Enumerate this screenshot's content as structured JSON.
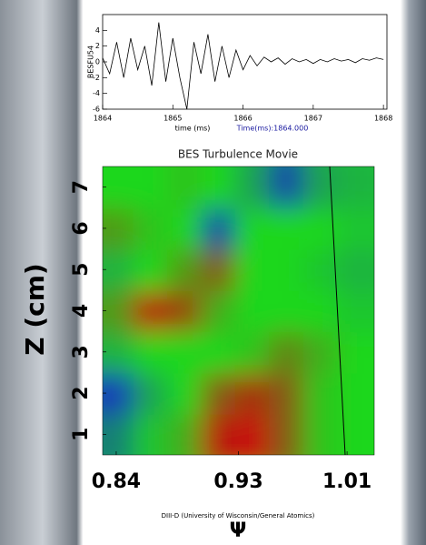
{
  "chart_data": [
    {
      "type": "line",
      "y_label": "BESFU54",
      "x_label": "time (ms)",
      "annotation": "Time(ms):1864.000",
      "x": [
        1864.0,
        1864.1,
        1864.2,
        1864.3,
        1864.4,
        1864.5,
        1864.6,
        1864.7,
        1864.8,
        1864.9,
        1865.0,
        1865.1,
        1865.2,
        1865.3,
        1865.4,
        1865.5,
        1865.6,
        1865.7,
        1865.8,
        1865.9,
        1866.0,
        1866.1,
        1866.2,
        1866.3,
        1866.4,
        1866.5,
        1866.6,
        1866.7,
        1866.8,
        1866.9,
        1867.0,
        1867.1,
        1867.2,
        1867.3,
        1867.4,
        1867.5,
        1867.6,
        1867.7,
        1867.8,
        1867.9,
        1868.0
      ],
      "series": [
        {
          "name": "BESFU54",
          "color": "#000000",
          "values": [
            0.5,
            -1.5,
            2.5,
            -2,
            3,
            -1,
            2,
            -3,
            5,
            -2.5,
            3,
            -2,
            -6,
            2.5,
            -1.5,
            3.5,
            -2.5,
            2,
            -2,
            1.5,
            -1,
            0.8,
            -0.5,
            0.6,
            0,
            0.5,
            -0.3,
            0.4,
            0,
            0.3,
            -0.2,
            0.3,
            0,
            0.4,
            0.1,
            0.3,
            -0.1,
            0.4,
            0.2,
            0.5,
            0.3
          ]
        }
      ],
      "xlim": [
        1864,
        1868.05
      ],
      "xticks": [
        1864,
        1865,
        1866,
        1867,
        1868
      ],
      "ylim": [
        -6,
        6
      ],
      "yticks": [
        -6,
        -4,
        -2,
        0,
        2,
        4
      ]
    },
    {
      "type": "heatmap",
      "title": "BES Turbulence Movie",
      "y_label": "Z (cm)",
      "x_label": "Ψ",
      "source": "DIII-D (University of Wisconsin/General Atomics)",
      "x": [
        0.84,
        0.865,
        0.89,
        0.915,
        0.94,
        0.965,
        0.99,
        1.015
      ],
      "y": [
        1,
        2,
        3,
        4,
        5,
        6,
        7
      ],
      "z": [
        [
          -0.5,
          -0.1,
          0.2,
          0.9,
          1,
          0.6,
          0.1,
          0
        ],
        [
          -0.9,
          -0.3,
          0,
          0.6,
          0.8,
          0.6,
          0.1,
          0
        ],
        [
          -0.2,
          0,
          0,
          0,
          0.1,
          0.4,
          0.2,
          0
        ],
        [
          0.3,
          0.9,
          0.7,
          0.2,
          0,
          0,
          0,
          -0.1
        ],
        [
          -0.2,
          0,
          0.3,
          0.6,
          0,
          0,
          -0.1,
          -0.2
        ],
        [
          0.3,
          0.1,
          0,
          -0.8,
          0,
          0,
          0,
          -0.1
        ],
        [
          0,
          0,
          0.1,
          0,
          -0.3,
          -0.8,
          -0.3,
          -0.2
        ]
      ],
      "xlim": [
        0.83,
        1.03
      ],
      "xticks": [
        0.84,
        0.93,
        1.01
      ],
      "ylim": [
        0.5,
        7.5
      ],
      "yticks": [
        1,
        2,
        3,
        4,
        5,
        6,
        7
      ]
    }
  ]
}
